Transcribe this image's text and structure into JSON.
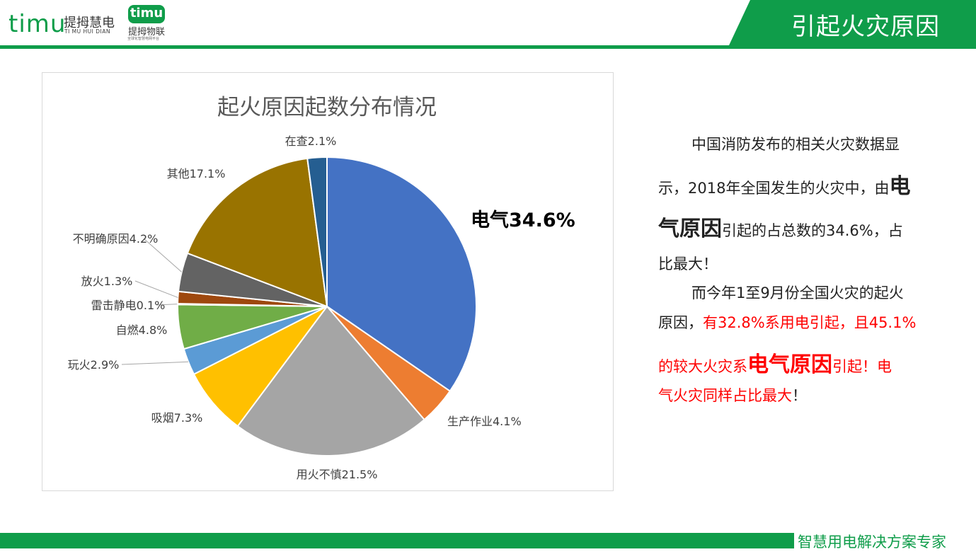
{
  "header": {
    "logo_text": "timu",
    "logo_cn": "提拇慧电",
    "logo_en": "TI MU HUI DIAN",
    "logo2_badge": "timu",
    "logo2_cn": "提拇物联",
    "logo2_sub": "全球化智慧电网平台",
    "title": "引起火灾原因",
    "accent_color": "#0f9d4a"
  },
  "chart_data": {
    "type": "pie",
    "title": "起火原因起数分布情况",
    "start_angle_deg": 0,
    "direction": "clockwise",
    "slices": [
      {
        "name": "电气",
        "value": 34.6,
        "label": "电气34.6%",
        "color": "#4472c4",
        "emphasis": true
      },
      {
        "name": "生产作业",
        "value": 4.1,
        "label": "生产作业4.1%",
        "color": "#ed7d31"
      },
      {
        "name": "用火不慎",
        "value": 21.5,
        "label": "用火不慎21.5%",
        "color": "#a5a5a5"
      },
      {
        "name": "吸烟",
        "value": 7.3,
        "label": "吸烟7.3%",
        "color": "#ffc000"
      },
      {
        "name": "玩火",
        "value": 2.9,
        "label": "玩火2.9%",
        "color": "#5b9bd5"
      },
      {
        "name": "自燃",
        "value": 4.8,
        "label": "自燃4.8%",
        "color": "#70ad47"
      },
      {
        "name": "雷击静电",
        "value": 0.1,
        "label": "雷击静电0.1%",
        "color": "#264478"
      },
      {
        "name": "放火",
        "value": 1.3,
        "label": "放火1.3%",
        "color": "#9e480e"
      },
      {
        "name": "不明确原因",
        "value": 4.2,
        "label": "不明确原因4.2%",
        "color": "#636363"
      },
      {
        "name": "其他",
        "value": 17.1,
        "label": "其他17.1%",
        "color": "#997300"
      },
      {
        "name": "在查",
        "value": 2.1,
        "label": "在查2.1%",
        "color": "#255e91"
      }
    ]
  },
  "text": {
    "p1_l1": "中国消防发布的相关火灾数据显",
    "p1_l2a": "示，2018年全国发生的火灾中，由",
    "p1_l2b": "电",
    "p1_l3a": "气原因",
    "p1_l3b": "引起的占总数的34.6%，占",
    "p1_l4": "比最大！",
    "p2_l1": "而今年1至9月份全国火灾的起火",
    "p2_l2a": "原因，",
    "p2_l2b": "有32.8%系用电引起，且45.1%",
    "p2_l3a": "的较大火灾系",
    "p2_l3b": "电气原因",
    "p2_l3c": "引起！电",
    "p2_l4a": "气火灾同样占比最大",
    "p2_l4b": "！"
  },
  "footer": {
    "slogan": "智慧用电解决方案专家"
  }
}
